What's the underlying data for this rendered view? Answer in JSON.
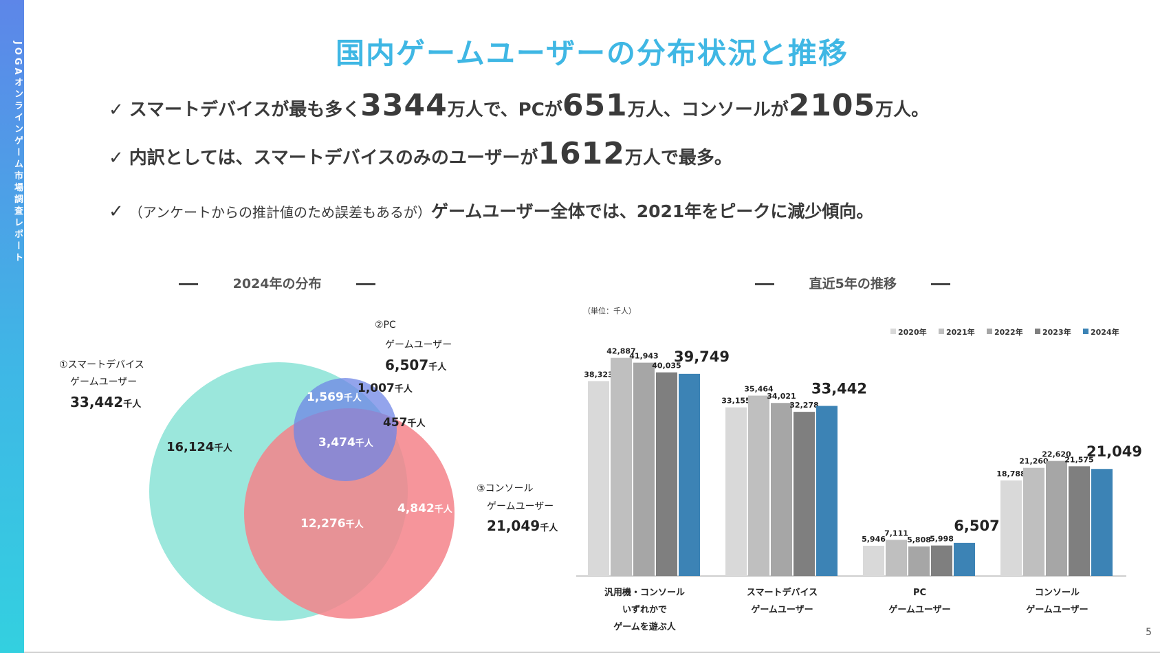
{
  "sidebar": {
    "text": "JOGAオンラインゲーム市場調査レポート"
  },
  "title": "国内ゲームユーザーの分布状況と推移",
  "bullets": {
    "check": "✓",
    "b1": {
      "t1": "スマートデバイスが最も多く",
      "n1": "3344",
      "t2": "万人で、PCが",
      "n2": "651",
      "t3": "万人、コンソールが",
      "n3": "2105",
      "t4": "万人。"
    },
    "b2": {
      "t1": "内訳としては、スマートデバイスのみのユーザーが",
      "n1": "1612",
      "t2": "万人で最多。"
    },
    "b3": {
      "paren": "（アンケートからの推計値のため誤差もあるが）",
      "text": "ゲームユーザー全体では、2021年をピークに減少傾向。"
    }
  },
  "venn": {
    "section_title": "2024年の分布",
    "sets": {
      "smart": {
        "label1": "①スマートデバイス",
        "label2": "ゲームユーザー",
        "total": "33,442",
        "unit": "千人"
      },
      "pc": {
        "label1": "②PC",
        "label2": "ゲームユーザー",
        "total": "6,507",
        "unit": "千人"
      },
      "console": {
        "label1": "③コンソール",
        "label2": "ゲームユーザー",
        "total": "21,049",
        "unit": "千人"
      }
    },
    "regions": {
      "smart_only": "16,124",
      "pc_only": "1,007",
      "smart_pc": "1,569",
      "pc_console": "457",
      "all_three": "3,474",
      "smart_console": "12,276",
      "console_only": "4,842"
    },
    "unit": "千人",
    "colors": {
      "smart": "#9be7dc",
      "pc": "#6f86e6",
      "console": "#f5828a"
    }
  },
  "chart_section_title": "直近5年の推移",
  "chart_data": {
    "type": "bar",
    "unit_note": "（単位：千人）",
    "categories": [
      [
        "汎用機・コンソール",
        "いずれかで",
        "ゲームを遊ぶ人"
      ],
      [
        "スマートデバイス",
        "ゲームユーザー"
      ],
      [
        "PC",
        "ゲームユーザー"
      ],
      [
        "コンソール",
        "ゲームユーザー"
      ]
    ],
    "series": [
      {
        "name": "2020年",
        "color": "#d9d9d9",
        "values": [
          38323,
          33155,
          5946,
          18788
        ]
      },
      {
        "name": "2021年",
        "color": "#bfbfbf",
        "values": [
          42887,
          35464,
          7111,
          21260
        ]
      },
      {
        "name": "2022年",
        "color": "#a6a6a6",
        "values": [
          41943,
          34021,
          5808,
          22620
        ]
      },
      {
        "name": "2023年",
        "color": "#7f7f7f",
        "values": [
          40035,
          32278,
          5998,
          21575
        ]
      },
      {
        "name": "2024年",
        "color": "#3c83b5",
        "values": [
          39749,
          33442,
          6507,
          21049
        ]
      }
    ],
    "legend_position": "top-right",
    "grid": false
  },
  "page_number": "5"
}
